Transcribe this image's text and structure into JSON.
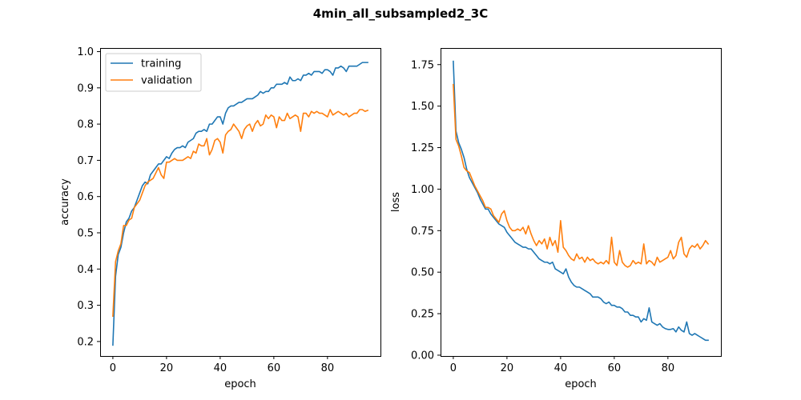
{
  "figure": {
    "title": "4min_all_subsampled2_3C"
  },
  "colors": {
    "training": "#1f77b4",
    "validation": "#ff7f0e",
    "axes": "#000000",
    "background": "#ffffff",
    "legend_border": "#cccccc"
  },
  "chart_data": [
    {
      "type": "line",
      "title": "",
      "xlabel": "epoch",
      "ylabel": "accuracy",
      "xlim": [
        -4.75,
        99.75
      ],
      "ylim": [
        0.16,
        1.01
      ],
      "xticks": [
        0,
        20,
        40,
        60,
        80
      ],
      "yticks": [
        0.2,
        0.3,
        0.4,
        0.5,
        0.6,
        0.7,
        0.8,
        0.9,
        1.0
      ],
      "ytick_labels": [
        "0.2",
        "0.3",
        "0.4",
        "0.5",
        "0.6",
        "0.7",
        "0.8",
        "0.9",
        "1.0"
      ],
      "grid": false,
      "legend": {
        "position": "top-left",
        "entries": [
          "training",
          "validation"
        ]
      },
      "series": [
        {
          "name": "training",
          "color": "#1f77b4",
          "values": [
            0.19,
            0.38,
            0.44,
            0.46,
            0.5,
            0.53,
            0.54,
            0.56,
            0.57,
            0.59,
            0.61,
            0.63,
            0.64,
            0.635,
            0.66,
            0.67,
            0.68,
            0.69,
            0.69,
            0.7,
            0.71,
            0.705,
            0.72,
            0.73,
            0.735,
            0.735,
            0.74,
            0.735,
            0.75,
            0.755,
            0.76,
            0.775,
            0.78,
            0.78,
            0.785,
            0.78,
            0.8,
            0.8,
            0.81,
            0.82,
            0.82,
            0.8,
            0.83,
            0.845,
            0.85,
            0.85,
            0.855,
            0.86,
            0.86,
            0.865,
            0.87,
            0.87,
            0.87,
            0.875,
            0.88,
            0.89,
            0.885,
            0.89,
            0.89,
            0.9,
            0.9,
            0.91,
            0.91,
            0.91,
            0.915,
            0.91,
            0.93,
            0.92,
            0.92,
            0.925,
            0.92,
            0.935,
            0.935,
            0.94,
            0.935,
            0.945,
            0.945,
            0.945,
            0.94,
            0.95,
            0.95,
            0.945,
            0.935,
            0.955,
            0.955,
            0.96,
            0.955,
            0.945,
            0.96,
            0.96,
            0.96,
            0.96,
            0.965,
            0.97,
            0.97,
            0.97
          ]
        },
        {
          "name": "validation",
          "color": "#ff7f0e",
          "values": [
            0.27,
            0.42,
            0.45,
            0.47,
            0.52,
            0.52,
            0.535,
            0.54,
            0.57,
            0.58,
            0.59,
            0.61,
            0.63,
            0.64,
            0.645,
            0.65,
            0.665,
            0.68,
            0.66,
            0.65,
            0.695,
            0.695,
            0.7,
            0.705,
            0.7,
            0.7,
            0.7,
            0.705,
            0.71,
            0.705,
            0.725,
            0.72,
            0.745,
            0.74,
            0.74,
            0.76,
            0.715,
            0.73,
            0.755,
            0.76,
            0.75,
            0.72,
            0.77,
            0.78,
            0.785,
            0.8,
            0.79,
            0.78,
            0.76,
            0.785,
            0.795,
            0.8,
            0.78,
            0.8,
            0.81,
            0.795,
            0.8,
            0.825,
            0.815,
            0.825,
            0.82,
            0.79,
            0.82,
            0.81,
            0.81,
            0.83,
            0.815,
            0.82,
            0.825,
            0.82,
            0.78,
            0.83,
            0.83,
            0.82,
            0.835,
            0.83,
            0.835,
            0.83,
            0.83,
            0.825,
            0.82,
            0.84,
            0.825,
            0.83,
            0.835,
            0.83,
            0.825,
            0.83,
            0.82,
            0.825,
            0.83,
            0.83,
            0.84,
            0.84,
            0.835,
            0.838
          ]
        }
      ]
    },
    {
      "type": "line",
      "title": "",
      "xlabel": "epoch",
      "ylabel": "loss",
      "xlim": [
        -4.75,
        99.75
      ],
      "ylim": [
        -0.005,
        1.85
      ],
      "xticks": [
        0,
        20,
        40,
        60,
        80
      ],
      "yticks": [
        0.0,
        0.25,
        0.5,
        0.75,
        1.0,
        1.25,
        1.5,
        1.75
      ],
      "ytick_labels": [
        "0.00",
        "0.25",
        "0.50",
        "0.75",
        "1.00",
        "1.25",
        "1.50",
        "1.75"
      ],
      "grid": false,
      "legend": null,
      "series": [
        {
          "name": "training",
          "color": "#1f77b4",
          "values": [
            1.77,
            1.35,
            1.28,
            1.24,
            1.19,
            1.12,
            1.07,
            1.04,
            1.01,
            0.98,
            0.94,
            0.91,
            0.88,
            0.88,
            0.85,
            0.83,
            0.81,
            0.79,
            0.78,
            0.77,
            0.74,
            0.72,
            0.7,
            0.68,
            0.67,
            0.66,
            0.65,
            0.65,
            0.64,
            0.64,
            0.62,
            0.6,
            0.58,
            0.57,
            0.56,
            0.56,
            0.55,
            0.56,
            0.52,
            0.51,
            0.5,
            0.49,
            0.52,
            0.47,
            0.44,
            0.42,
            0.41,
            0.41,
            0.4,
            0.39,
            0.38,
            0.37,
            0.35,
            0.35,
            0.35,
            0.34,
            0.32,
            0.31,
            0.32,
            0.3,
            0.3,
            0.29,
            0.29,
            0.28,
            0.26,
            0.26,
            0.24,
            0.24,
            0.23,
            0.23,
            0.2,
            0.22,
            0.21,
            0.285,
            0.2,
            0.19,
            0.18,
            0.19,
            0.17,
            0.16,
            0.155,
            0.155,
            0.16,
            0.14,
            0.17,
            0.15,
            0.14,
            0.2,
            0.13,
            0.12,
            0.13,
            0.12,
            0.11,
            0.1,
            0.09,
            0.09
          ]
        },
        {
          "name": "validation",
          "color": "#ff7f0e",
          "values": [
            1.63,
            1.3,
            1.26,
            1.2,
            1.13,
            1.11,
            1.1,
            1.06,
            1.02,
            0.99,
            0.96,
            0.93,
            0.89,
            0.89,
            0.88,
            0.84,
            0.82,
            0.8,
            0.85,
            0.87,
            0.81,
            0.77,
            0.75,
            0.75,
            0.76,
            0.75,
            0.77,
            0.73,
            0.78,
            0.73,
            0.69,
            0.66,
            0.69,
            0.67,
            0.7,
            0.64,
            0.71,
            0.66,
            0.69,
            0.62,
            0.81,
            0.65,
            0.63,
            0.6,
            0.58,
            0.57,
            0.61,
            0.58,
            0.59,
            0.56,
            0.59,
            0.57,
            0.58,
            0.56,
            0.55,
            0.56,
            0.55,
            0.57,
            0.55,
            0.71,
            0.56,
            0.54,
            0.63,
            0.56,
            0.54,
            0.53,
            0.54,
            0.57,
            0.55,
            0.56,
            0.55,
            0.67,
            0.55,
            0.57,
            0.56,
            0.54,
            0.59,
            0.56,
            0.57,
            0.58,
            0.59,
            0.63,
            0.58,
            0.6,
            0.68,
            0.71,
            0.61,
            0.59,
            0.64,
            0.66,
            0.65,
            0.67,
            0.64,
            0.66,
            0.69,
            0.67
          ]
        }
      ]
    }
  ]
}
